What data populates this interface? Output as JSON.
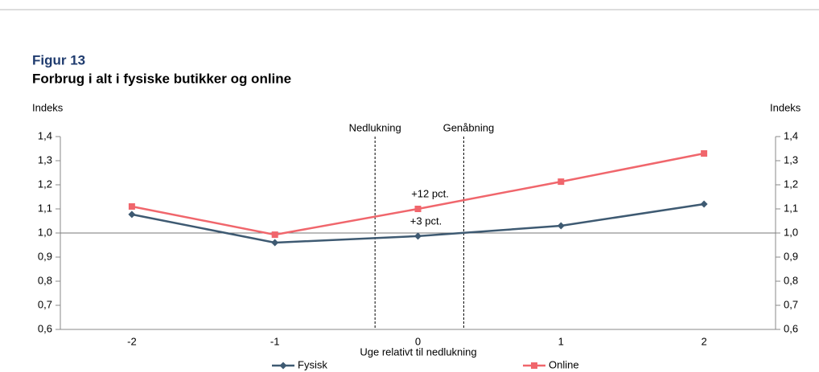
{
  "chart_data": {
    "type": "line",
    "figure_label": "Figur 13",
    "title": "Forbrug i alt i fysiske butikker og online",
    "y_label": "Indeks",
    "y2_label": "Indeks",
    "x_label": "Uge relativt til nedlukning",
    "x": [
      -2,
      -1,
      0,
      1,
      2
    ],
    "xlim": [
      -2.5,
      2.5
    ],
    "xticks": [
      -2,
      -1,
      0,
      1,
      2
    ],
    "ylim": [
      0.6,
      1.4
    ],
    "yticks": [
      {
        "value": 0.6,
        "label": "0,6"
      },
      {
        "value": 0.7,
        "label": "0,7"
      },
      {
        "value": 0.8,
        "label": "0,8"
      },
      {
        "value": 0.9,
        "label": "0,9"
      },
      {
        "value": 1.0,
        "label": "1,0"
      },
      {
        "value": 1.1,
        "label": "1,1"
      },
      {
        "value": 1.2,
        "label": "1,2"
      },
      {
        "value": 1.3,
        "label": "1,3"
      },
      {
        "value": 1.4,
        "label": "1,4"
      }
    ],
    "reference_line": 1.0,
    "series": [
      {
        "name": "Fysisk",
        "color": "#3e5a72",
        "marker": "diamond",
        "values": [
          1.077,
          0.96,
          0.987,
          1.03,
          1.12
        ]
      },
      {
        "name": "Online",
        "color": "#f0666c",
        "marker": "square",
        "values": [
          1.11,
          0.993,
          1.1,
          1.213,
          1.33
        ]
      }
    ],
    "vlines": [
      {
        "x": -0.3,
        "label": "Nedlukning"
      },
      {
        "x": 0.32,
        "label": "Genåbning"
      }
    ],
    "annotations": [
      "+12 pct.",
      "+3 pct."
    ]
  }
}
